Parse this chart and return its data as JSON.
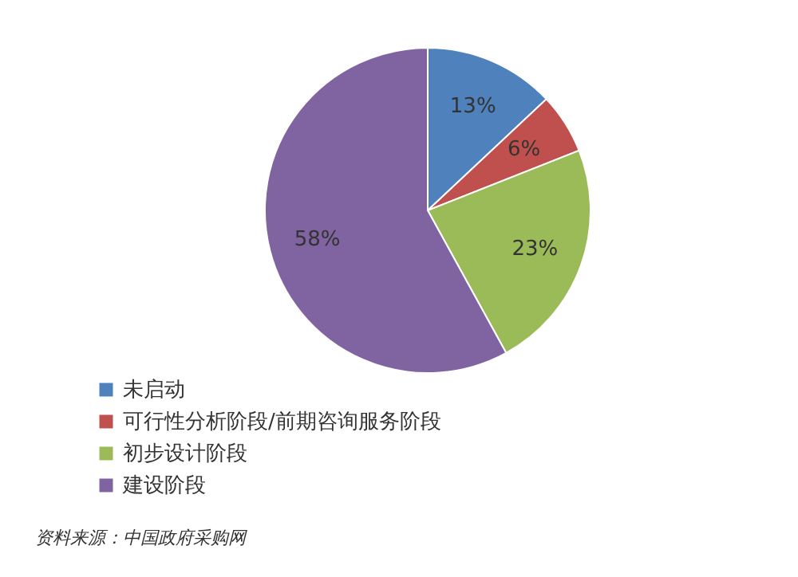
{
  "chart_data": {
    "type": "pie",
    "categories": [
      "未启动",
      "可行性分析阶段/前期咨询服务阶段",
      "初步设计阶段",
      "建设阶段"
    ],
    "values": [
      13,
      6,
      23,
      58
    ],
    "colors": [
      "#4f81bd",
      "#c0504d",
      "#9bbb59",
      "#8064a2"
    ],
    "value_labels": [
      "13%",
      "6%",
      "23%",
      "58%"
    ],
    "legend": "bottom left",
    "annotations": [
      "资料来源：中国政府采购网"
    ]
  }
}
